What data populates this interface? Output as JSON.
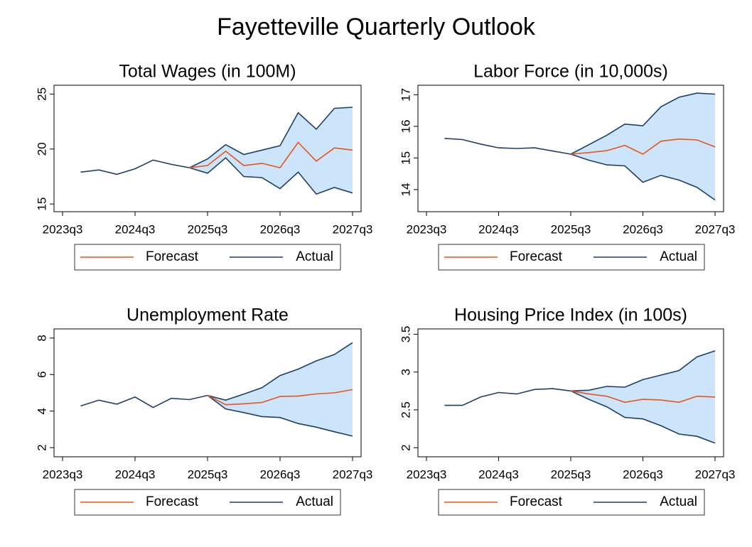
{
  "title": "Fayetteville Quarterly Outlook",
  "chart_data": [
    {
      "type": "line",
      "title": "Total Wages (in 100M)",
      "x": [
        "2023q3",
        null,
        null,
        null,
        "2024q3",
        null,
        null,
        null,
        "2025q3",
        null,
        null,
        null,
        "2026q3",
        null,
        null,
        null,
        "2027q3"
      ],
      "series": [
        {
          "name": "Forecast",
          "color": "#e8541c",
          "values": [
            null,
            null,
            null,
            null,
            null,
            null,
            null,
            18.3,
            18.5,
            19.8,
            18.5,
            18.7,
            18.3,
            20.6,
            18.9,
            20.1,
            19.9
          ]
        },
        {
          "name": "Actual",
          "color": "#1f3f66",
          "values": [
            null,
            17.9,
            18.1,
            17.7,
            18.2,
            19.0,
            18.6,
            18.3,
            null,
            null,
            null,
            null,
            null,
            null,
            null,
            null,
            null
          ]
        }
      ],
      "band": {
        "color": "#cce5fb",
        "line_color": "#1f3f66",
        "upper": [
          null,
          null,
          null,
          null,
          null,
          null,
          null,
          18.3,
          19.1,
          20.4,
          19.5,
          19.9,
          20.3,
          23.3,
          21.8,
          23.7,
          23.8
        ],
        "lower": [
          null,
          null,
          null,
          null,
          null,
          null,
          null,
          18.3,
          17.8,
          19.2,
          17.5,
          17.4,
          16.4,
          17.9,
          15.9,
          16.5,
          16.0
        ]
      },
      "ylim": [
        14.3,
        25.8
      ],
      "yticks": [
        15,
        20,
        25
      ],
      "legend": "bottom"
    },
    {
      "type": "line",
      "title": "Labor Force (in 10,000s)",
      "x": [
        "2023q3",
        null,
        null,
        null,
        "2024q3",
        null,
        null,
        null,
        "2025q3",
        null,
        null,
        null,
        "2026q3",
        null,
        null,
        null,
        "2027q3"
      ],
      "series": [
        {
          "name": "Forecast",
          "color": "#e8541c",
          "values": [
            null,
            null,
            null,
            null,
            null,
            null,
            null,
            null,
            15.12,
            15.17,
            15.23,
            15.4,
            15.12,
            15.53,
            15.6,
            15.57,
            15.35
          ]
        },
        {
          "name": "Actual",
          "color": "#1f3f66",
          "values": [
            null,
            15.62,
            15.58,
            15.44,
            15.32,
            15.3,
            15.32,
            15.22,
            15.12,
            null,
            null,
            null,
            null,
            null,
            null,
            null,
            null
          ]
        }
      ],
      "band": {
        "color": "#cce5fb",
        "line_color": "#1f3f66",
        "upper": [
          null,
          null,
          null,
          null,
          null,
          null,
          null,
          null,
          15.12,
          15.42,
          15.72,
          16.07,
          16.02,
          16.62,
          16.92,
          17.05,
          17.02
        ],
        "lower": [
          null,
          null,
          null,
          null,
          null,
          null,
          null,
          null,
          15.12,
          14.93,
          14.78,
          14.75,
          14.23,
          14.45,
          14.3,
          14.07,
          13.67
        ]
      },
      "ylim": [
        13.3,
        17.3
      ],
      "yticks": [
        14,
        15,
        16,
        17
      ],
      "legend": "bottom"
    },
    {
      "type": "line",
      "title": "Unemployment Rate",
      "x": [
        "2023q3",
        null,
        null,
        null,
        "2024q3",
        null,
        null,
        null,
        "2025q3",
        null,
        null,
        null,
        "2026q3",
        null,
        null,
        null,
        "2027q3"
      ],
      "series": [
        {
          "name": "Forecast",
          "color": "#e8541c",
          "values": [
            null,
            null,
            null,
            null,
            null,
            null,
            null,
            null,
            4.86,
            4.35,
            4.4,
            4.47,
            4.8,
            4.82,
            4.94,
            5.0,
            5.18
          ]
        },
        {
          "name": "Actual",
          "color": "#1f3f66",
          "values": [
            null,
            4.28,
            4.6,
            4.38,
            4.77,
            4.2,
            4.7,
            4.63,
            4.86,
            null,
            null,
            null,
            null,
            null,
            null,
            null,
            null
          ]
        }
      ],
      "band": {
        "color": "#cce5fb",
        "line_color": "#1f3f66",
        "upper": [
          null,
          null,
          null,
          null,
          null,
          null,
          null,
          null,
          4.86,
          4.6,
          4.93,
          5.28,
          5.95,
          6.3,
          6.75,
          7.1,
          7.75
        ],
        "lower": [
          null,
          null,
          null,
          null,
          null,
          null,
          null,
          null,
          4.86,
          4.12,
          3.92,
          3.7,
          3.65,
          3.32,
          3.12,
          2.87,
          2.63
        ]
      },
      "ylim": [
        1.5,
        8.5
      ],
      "yticks": [
        2,
        4,
        6,
        8
      ],
      "legend": "bottom"
    },
    {
      "type": "line",
      "title": "Housing Price Index (in 100s)",
      "x": [
        "2023q3",
        null,
        null,
        null,
        "2024q3",
        null,
        null,
        null,
        "2025q3",
        null,
        null,
        null,
        "2026q3",
        null,
        null,
        null,
        "2027q3"
      ],
      "series": [
        {
          "name": "Forecast",
          "color": "#e8541c",
          "values": [
            null,
            null,
            null,
            null,
            null,
            null,
            null,
            null,
            2.75,
            2.71,
            2.68,
            2.6,
            2.64,
            2.63,
            2.6,
            2.68,
            2.67
          ]
        },
        {
          "name": "Actual",
          "color": "#1f3f66",
          "values": [
            null,
            2.56,
            2.56,
            2.67,
            2.73,
            2.71,
            2.77,
            2.78,
            2.75,
            null,
            null,
            null,
            null,
            null,
            null,
            null,
            null
          ]
        }
      ],
      "band": {
        "color": "#cce5fb",
        "line_color": "#1f3f66",
        "upper": [
          null,
          null,
          null,
          null,
          null,
          null,
          null,
          null,
          2.75,
          2.76,
          2.81,
          2.8,
          2.9,
          2.96,
          3.02,
          3.2,
          3.28
        ],
        "lower": [
          null,
          null,
          null,
          null,
          null,
          null,
          null,
          null,
          2.75,
          2.64,
          2.54,
          2.4,
          2.38,
          2.29,
          2.18,
          2.15,
          2.06
        ]
      },
      "ylim": [
        1.88,
        3.57
      ],
      "yticks": [
        2,
        2.5,
        3,
        3.5
      ],
      "legend": "bottom"
    }
  ]
}
